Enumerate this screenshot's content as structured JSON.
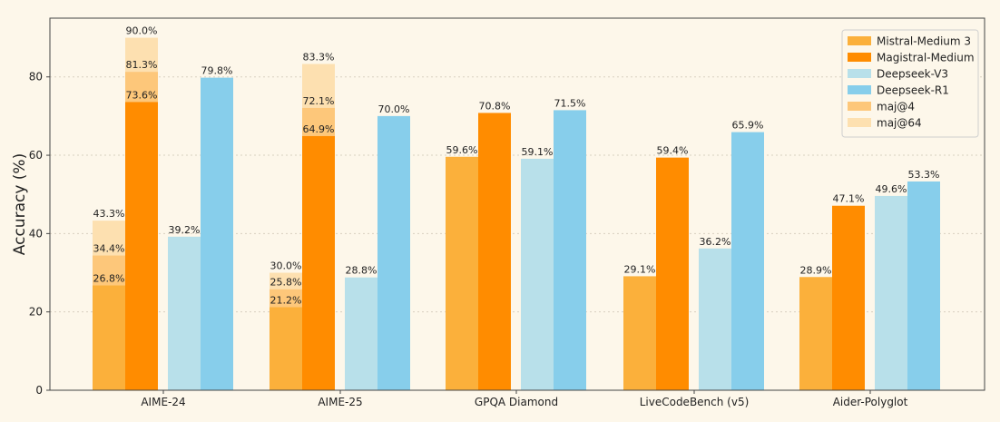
{
  "chart_data": {
    "type": "bar",
    "title": "",
    "xlabel": "",
    "ylabel": "Accuracy (%)",
    "ylim": [
      0,
      95
    ],
    "yticks": [
      0,
      20,
      40,
      60,
      80
    ],
    "grid": true,
    "legend_position": "top-right",
    "categories": [
      "AIME-24",
      "AIME-25",
      "GPQA Diamond",
      "LiveCodeBench (v5)",
      "Aider-Polyglot"
    ],
    "series": [
      {
        "name": "Mistral-Medium 3",
        "color": "#fbb03b",
        "values": [
          26.8,
          21.2,
          59.6,
          29.1,
          28.9
        ],
        "maj4": [
          34.4,
          25.8,
          null,
          null,
          null
        ],
        "maj64": [
          43.3,
          30.0,
          null,
          null,
          null
        ]
      },
      {
        "name": "Magistral-Medium",
        "color": "#ff8c00",
        "values": [
          73.6,
          64.9,
          70.8,
          59.4,
          47.1
        ],
        "maj4": [
          81.3,
          72.1,
          null,
          null,
          null
        ],
        "maj64": [
          90.0,
          83.3,
          null,
          null,
          null
        ]
      },
      {
        "name": "Deepseek-V3",
        "color": "#b8e0ea",
        "values": [
          39.2,
          28.8,
          59.1,
          36.2,
          49.6
        ]
      },
      {
        "name": "Deepseek-R1",
        "color": "#87ceeb",
        "values": [
          79.8,
          70.0,
          71.5,
          65.9,
          53.3
        ]
      }
    ],
    "stack_legend": [
      {
        "name": "maj@4",
        "color": "#fdc77a"
      },
      {
        "name": "maj@64",
        "color": "#fde0b0"
      }
    ]
  }
}
